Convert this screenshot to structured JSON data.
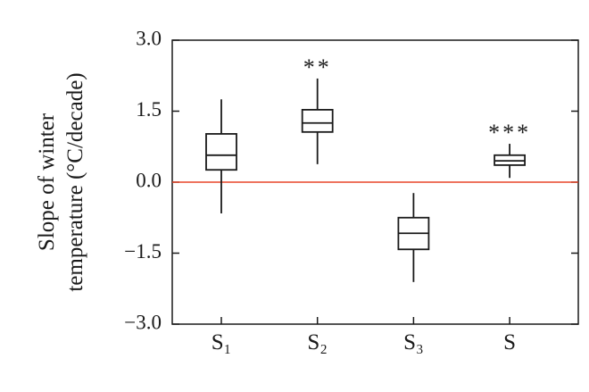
{
  "chart_data": {
    "type": "box",
    "y_label_lines": [
      "Slope of winter",
      "temperature (°C/decade)"
    ],
    "categories": [
      "S₁",
      "S₂",
      "S₃",
      "S"
    ],
    "boxes": [
      {
        "whisker_low": -0.66,
        "q1": 0.26,
        "median": 0.57,
        "q3": 1.02,
        "whisker_high": 1.75
      },
      {
        "whisker_low": 0.38,
        "q1": 1.06,
        "median": 1.25,
        "q3": 1.53,
        "whisker_high": 2.19
      },
      {
        "whisker_low": -2.11,
        "q1": -1.42,
        "median": -1.08,
        "q3": -0.75,
        "whisker_high": -0.23
      },
      {
        "whisker_low": 0.09,
        "q1": 0.36,
        "median": 0.45,
        "q3": 0.57,
        "whisker_high": 0.81
      }
    ],
    "significance": [
      null,
      "**",
      null,
      "***"
    ],
    "reference_line": {
      "value": 0,
      "color": "#e8462a"
    },
    "box_color": "#1a1a1a",
    "ylim": [
      -3.0,
      3.0
    ],
    "yticks": [
      {
        "value": 3.0,
        "label": "3.0"
      },
      {
        "value": 1.5,
        "label": "1.5"
      },
      {
        "value": 0,
        "label": "0.0"
      },
      {
        "value": -1.5,
        "label": "−1.5"
      },
      {
        "value": -3.0,
        "label": "−3.0"
      }
    ]
  }
}
